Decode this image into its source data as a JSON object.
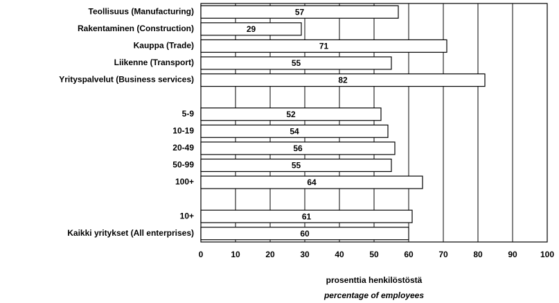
{
  "chart_data": {
    "type": "barh",
    "categories": [
      "Teollisuus (Manufacturing)",
      "Rakentaminen (Construction)",
      "Kauppa (Trade)",
      "Liikenne (Transport)",
      "Yrityspalvelut (Business services)",
      null,
      "5-9",
      "10-19",
      "20-49",
      "50-99",
      "100+",
      null,
      "10+",
      "Kaikki yritykset (All enterprises)"
    ],
    "values": [
      57,
      29,
      71,
      55,
      82,
      null,
      52,
      54,
      56,
      55,
      64,
      null,
      61,
      60
    ],
    "color": "#ffffff",
    "xlim": [
      0,
      100
    ],
    "xticks": [
      0,
      10,
      20,
      30,
      40,
      50,
      60,
      70,
      80,
      90,
      100
    ],
    "grid": true,
    "xlabel": [
      "prosenttia henkilöstöstä",
      "percentage of employees"
    ]
  }
}
